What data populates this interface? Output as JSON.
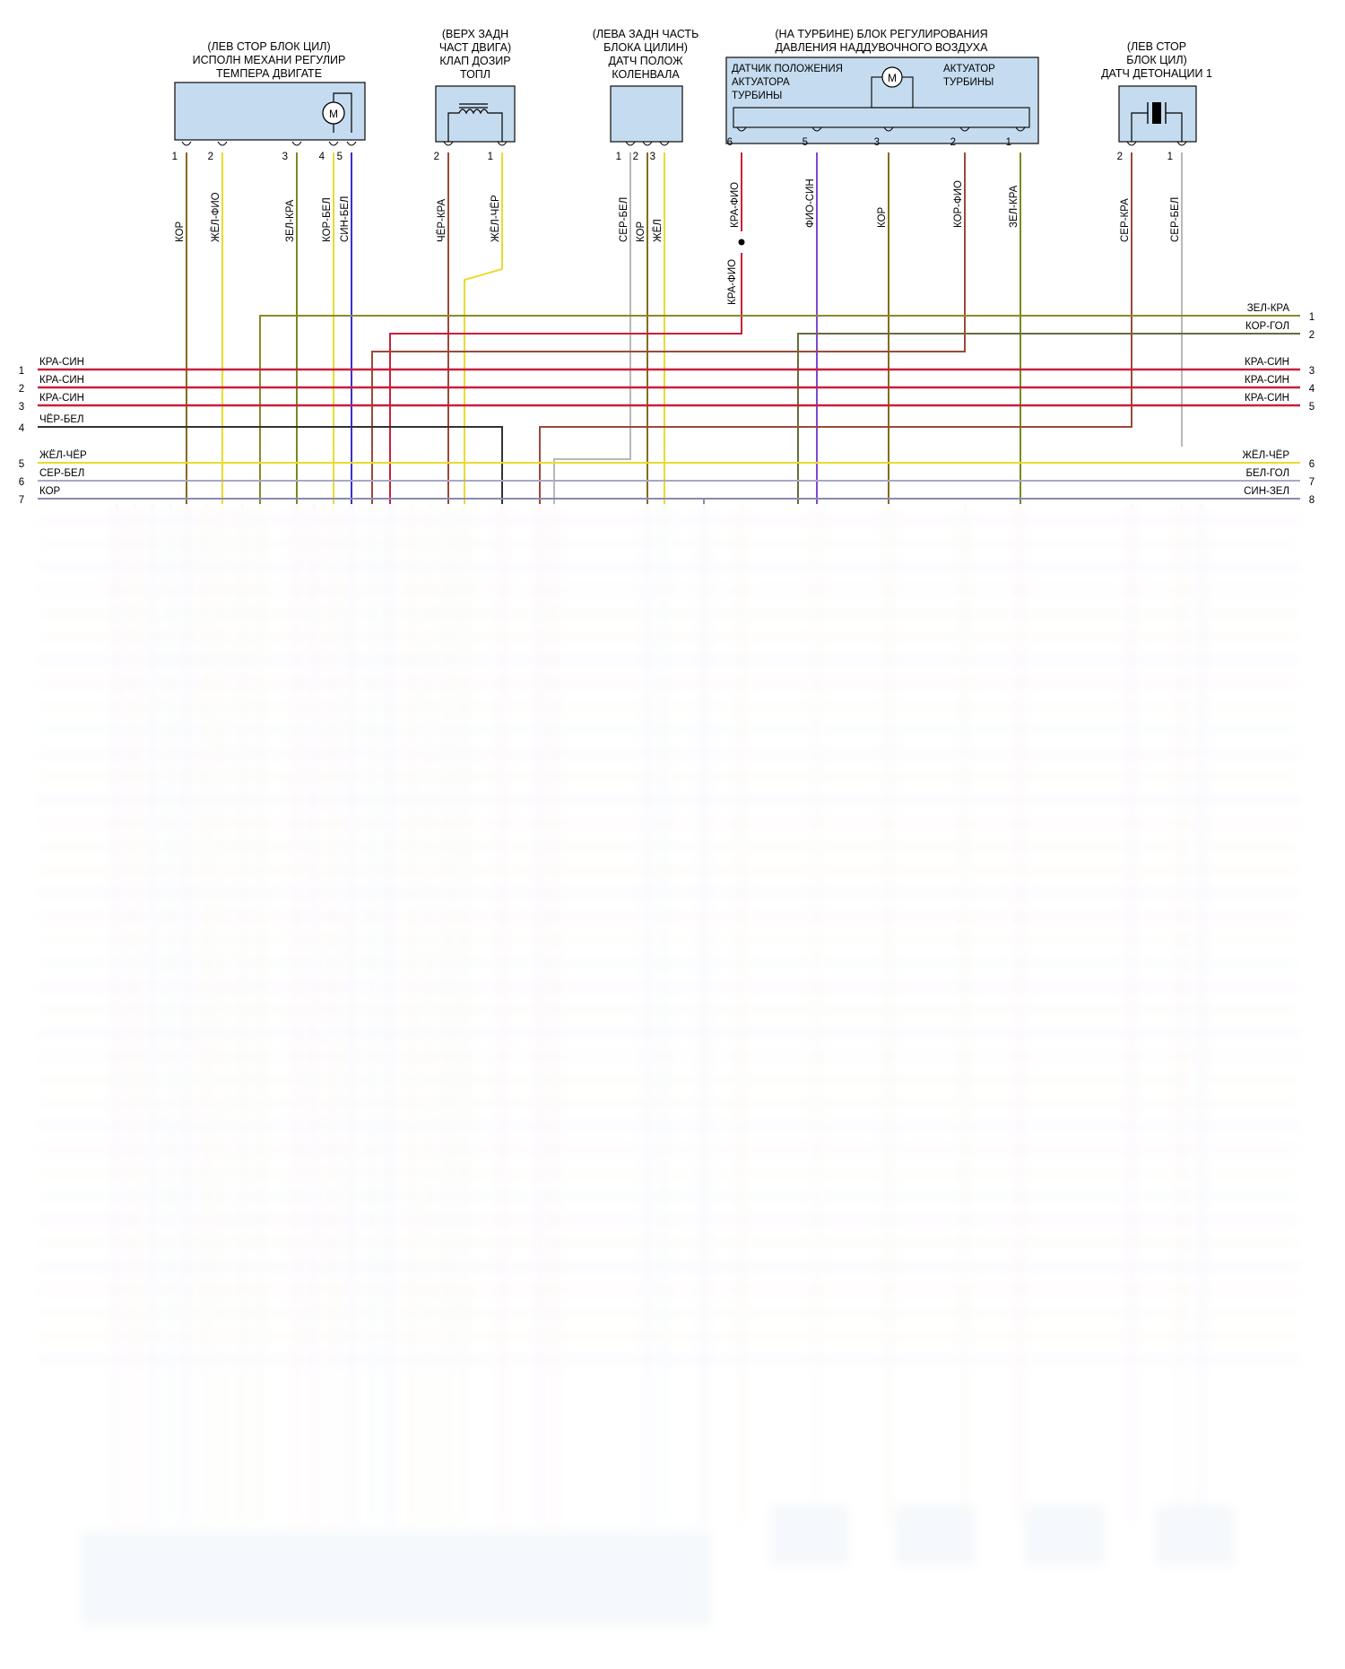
{
  "components": [
    {
      "id": "c1",
      "title": [
        "(ЛЕВ СТОР БЛОК ЦИЛ)",
        "ИСПОЛН МЕХАНИ РЕГУЛИР",
        "ТЕМПЕРА ДВИГАТЕ"
      ],
      "icon": "motor-icon",
      "pins": [
        {
          "n": "1",
          "wire": "КОР"
        },
        {
          "n": "2",
          "wire": "ЖЁЛ-ФИО"
        },
        {
          "n": "3",
          "wire": "ЗЕЛ-КРА"
        },
        {
          "n": "4",
          "wire": "КОР-БЕЛ"
        },
        {
          "n": "5",
          "wire": "СИН-БЕЛ"
        }
      ]
    },
    {
      "id": "c2",
      "title": [
        "(ВЕРХ ЗАДН",
        "ЧАСТ ДВИГА)",
        "КЛАП ДОЗИР",
        "ТОПЛ"
      ],
      "icon": "solenoid-icon",
      "pins": [
        {
          "n": "2",
          "wire": "ЧЁР-КРА"
        },
        {
          "n": "1",
          "wire": "ЖЁЛ-ЧЁР"
        }
      ]
    },
    {
      "id": "c3",
      "title": [
        "(ЛЕВА ЗАДН ЧАСТЬ",
        "БЛОКА ЦИЛИН)",
        "ДАТЧ ПОЛОЖ",
        "КОЛЕНВАЛА"
      ],
      "icon": "",
      "pins": [
        {
          "n": "1",
          "wire": "СЕР-БЕЛ"
        },
        {
          "n": "2",
          "wire": "КОР"
        },
        {
          "n": "3",
          "wire": "ЖЁЛ"
        }
      ]
    },
    {
      "id": "c4",
      "title": [
        "(НА ТУРБИНЕ) БЛОК РЕГУЛИРОВАНИЯ",
        "ДАВЛЕНИЯ НАДДУВОЧНОГО ВОЗДУХА"
      ],
      "icon": "motor-icon",
      "inner_left": [
        "ДАТЧИК ПОЛОЖЕНИЯ",
        "АКТУАТОРА",
        "ТУРБИНЫ"
      ],
      "inner_right": [
        "АКТУАТОР",
        "ТУРБИНЫ"
      ],
      "pins": [
        {
          "n": "6",
          "wire": "КРА-ФИО"
        },
        {
          "n": "5",
          "wire": "ФИО-СИН"
        },
        {
          "n": "3",
          "wire": "КОР"
        },
        {
          "n": "2",
          "wire": "КОР-ФИО"
        },
        {
          "n": "1",
          "wire": "ЗЕЛ-КРА"
        }
      ],
      "splice_label": "КРА-ФИО"
    },
    {
      "id": "c5",
      "title": [
        "(ЛЕВ СТОР",
        "БЛОК ЦИЛ)",
        "ДАТЧ ДЕТОНАЦИИ 1"
      ],
      "icon": "knock-sensor-icon",
      "pins": [
        {
          "n": "2",
          "wire": "СЕР-КРА"
        },
        {
          "n": "1",
          "wire": "СЕР-БЕЛ"
        }
      ]
    }
  ],
  "left_wires": [
    {
      "n": "1",
      "label": "КРА-СИН"
    },
    {
      "n": "2",
      "label": "КРА-СИН"
    },
    {
      "n": "3",
      "label": "КРА-СИН"
    },
    {
      "n": "4",
      "label": "ЧЁР-БЕЛ"
    },
    {
      "n": "5",
      "label": "ЖЁЛ-ЧЁР"
    },
    {
      "n": "6",
      "label": "СЕР-БЕЛ"
    },
    {
      "n": "7",
      "label": "КОР"
    }
  ],
  "right_wires": [
    {
      "n": "1",
      "label": "ЗЕЛ-КРА"
    },
    {
      "n": "2",
      "label": "КОР-ГОЛ"
    },
    {
      "n": "3",
      "label": "КРА-СИН"
    },
    {
      "n": "4",
      "label": "КРА-СИН"
    },
    {
      "n": "5",
      "label": "КРА-СИН"
    },
    {
      "n": "6",
      "label": "ЖЁЛ-ЧЁР"
    },
    {
      "n": "7",
      "label": "БЕЛ-ГОЛ"
    },
    {
      "n": "8",
      "label": "СИН-ЗЕЛ"
    }
  ],
  "colors": {
    "brown": "#8a6a1c",
    "yellow": "#e8dc30",
    "green": "#7a8a1e",
    "blue": "#3a30c8",
    "red": "#c8203c",
    "black": "#333333",
    "grey": "#b8b8b8",
    "purple": "#7a4ad0",
    "brownred": "#9a4a3a",
    "olive": "#8a8a2a",
    "slate": "#8a8ab0",
    "box": "#c5dcf0"
  }
}
